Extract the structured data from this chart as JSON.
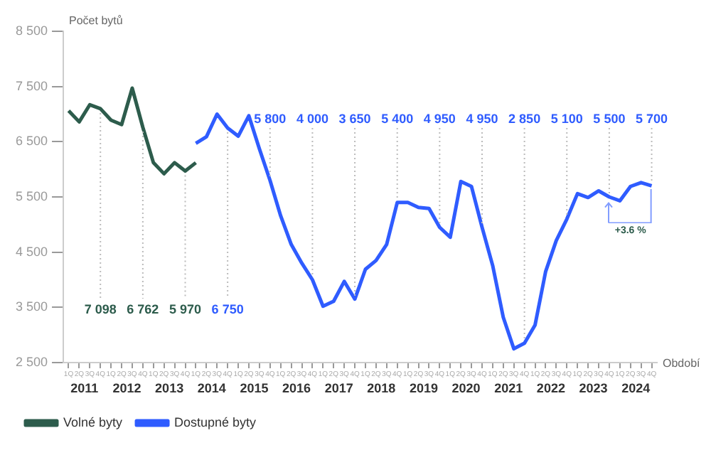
{
  "chart_data": {
    "type": "line",
    "xlabel": "Období",
    "ylabel": "Počet bytů",
    "legend": "bottom left",
    "ylim": [
      2500,
      8500
    ],
    "yticks": [
      {
        "value": 2500,
        "label": "2 500"
      },
      {
        "value": 3500,
        "label": "3 500"
      },
      {
        "value": 4500,
        "label": "4 500"
      },
      {
        "value": 5500,
        "label": "5 500"
      },
      {
        "value": 6500,
        "label": "6 500"
      },
      {
        "value": 7500,
        "label": "7 500"
      },
      {
        "value": 8500,
        "label": "8 500"
      }
    ],
    "categories": [
      "1Q",
      "2Q",
      "3Q",
      "4Q",
      "1Q",
      "2Q",
      "3Q",
      "4Q",
      "1Q",
      "2Q",
      "3Q",
      "4Q",
      "1Q",
      "2Q",
      "3Q",
      "4Q",
      "1Q",
      "2Q",
      "3Q",
      "4Q",
      "1Q",
      "2Q",
      "3Q",
      "4Q",
      "1Q",
      "2Q",
      "3Q",
      "4Q",
      "1Q",
      "2Q",
      "3Q",
      "4Q",
      "1Q",
      "2Q",
      "3Q",
      "4Q",
      "1Q",
      "2Q",
      "3Q",
      "4Q",
      "1Q",
      "2Q",
      "3Q",
      "4Q",
      "1Q",
      "2Q",
      "3Q",
      "4Q",
      "1Q",
      "2Q",
      "3Q",
      "4Q",
      "1Q",
      "2Q",
      "3Q",
      "4Q"
    ],
    "series": [
      {
        "name": "Volné byty",
        "color": "#2d5c4c",
        "values": [
          7060,
          6860,
          7170,
          7098,
          6890,
          6810,
          7470,
          6762,
          6120,
          5920,
          6120,
          5970,
          6120,
          null,
          null,
          null,
          null,
          null,
          null,
          null,
          null,
          null,
          null,
          null,
          null,
          null,
          null,
          null,
          null,
          null,
          null,
          null,
          null,
          null,
          null,
          null,
          null,
          null,
          null,
          null,
          null,
          null,
          null,
          null,
          null,
          null,
          null,
          null,
          null,
          null,
          null,
          null,
          null,
          null,
          null,
          null
        ],
        "value_labels": [
          null,
          null,
          null,
          "7 098",
          null,
          null,
          null,
          "6 762",
          null,
          null,
          null,
          "5 970",
          null,
          null,
          null,
          null,
          null,
          null,
          null,
          null,
          null,
          null,
          null,
          null,
          null,
          null,
          null,
          null,
          null,
          null,
          null,
          null,
          null,
          null,
          null,
          null,
          null,
          null,
          null,
          null,
          null,
          null,
          null,
          null,
          null,
          null,
          null,
          null,
          null,
          null,
          null,
          null,
          null,
          null,
          null,
          null
        ]
      },
      {
        "name": "Dostupné byty",
        "color": "#2f5cff",
        "values": [
          null,
          null,
          null,
          null,
          null,
          null,
          null,
          null,
          null,
          null,
          null,
          null,
          6470,
          6590,
          7000,
          6750,
          6600,
          6970,
          6370,
          5800,
          5160,
          4640,
          4300,
          4000,
          3520,
          3610,
          3970,
          3650,
          4190,
          4350,
          4640,
          5400,
          5400,
          5310,
          5290,
          4950,
          4770,
          5780,
          5690,
          4950,
          4260,
          3320,
          2750,
          2850,
          3180,
          4150,
          4710,
          5100,
          5560,
          5490,
          5610,
          5500,
          5430,
          5690,
          5760,
          5700
        ],
        "value_labels": [
          null,
          null,
          null,
          null,
          null,
          null,
          null,
          null,
          null,
          null,
          null,
          null,
          null,
          null,
          null,
          "6 750",
          null,
          null,
          null,
          "5 800",
          null,
          null,
          null,
          "4 000",
          null,
          null,
          null,
          "3 650",
          null,
          null,
          null,
          "5 400",
          null,
          null,
          null,
          "4 950",
          null,
          null,
          null,
          "4 950",
          null,
          null,
          null,
          "2 850",
          null,
          null,
          null,
          "5 100",
          null,
          null,
          null,
          "5 500",
          null,
          null,
          null,
          "5 700"
        ]
      }
    ],
    "annotations": [
      "+3.6 %",
      "2011",
      "2012",
      "2013",
      "2014",
      "2015",
      "2016",
      "2017",
      "2018",
      "2019",
      "2020",
      "2021",
      "2022",
      "2023",
      "2024"
    ]
  }
}
